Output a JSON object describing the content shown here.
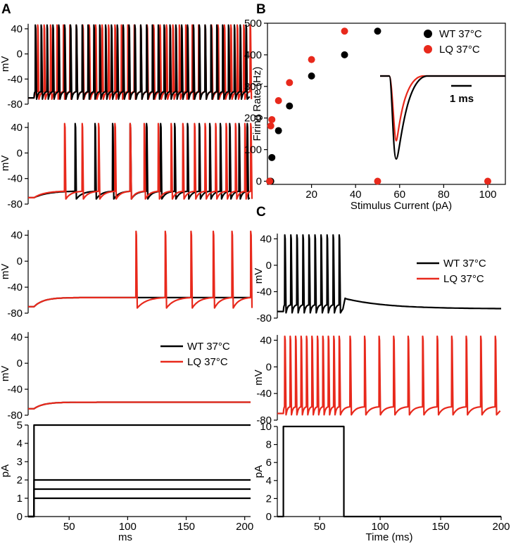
{
  "figure_labels": {
    "A": "A",
    "B": "B",
    "C": "C"
  },
  "colors": {
    "wt": "#000000",
    "lq": "#e8291c"
  },
  "legend": {
    "wt": "WT 37°C",
    "lq": "LQ 37°C"
  },
  "chart_data": [
    {
      "id": "A1",
      "type": "line",
      "title": "",
      "ylabel": "mV",
      "xlabel": "",
      "xlim": [
        15,
        205
      ],
      "ylim": [
        -80,
        50
      ],
      "yticks": [
        40,
        0,
        -40,
        -80
      ],
      "xticks": [],
      "series": [
        {
          "name": "WT 37°C",
          "key": "wt",
          "spike_onset_ms": 21,
          "spike_times_ms": [
            21,
            26,
            31,
            36,
            41,
            46,
            51,
            56,
            61,
            66,
            71,
            76,
            81,
            86,
            91,
            96,
            101,
            106,
            111,
            116,
            121,
            126,
            131,
            136,
            141,
            146,
            151,
            156,
            161,
            166,
            171,
            176,
            181,
            186,
            191,
            196,
            201
          ],
          "baseline_mV": -70,
          "isi_floor_mV": -72
        },
        {
          "name": "LQ 37°C",
          "key": "lq",
          "spike_onset_ms": 23,
          "spike_times_ms": [
            23,
            28.5,
            34,
            39.5,
            45,
            50.5,
            56,
            61.5,
            67,
            72.5,
            78,
            83.5,
            89,
            94.5,
            100,
            105.5,
            111,
            116.5,
            122,
            127.5,
            133,
            138.5,
            144,
            149.5,
            155,
            160.5,
            166,
            171.5,
            177,
            182.5,
            188,
            193.5,
            199,
            204.5
          ],
          "baseline_mV": -70,
          "isi_floor_mV": -72
        }
      ]
    },
    {
      "id": "A2",
      "type": "line",
      "title": "",
      "ylabel": "mV",
      "xlabel": "",
      "xlim": [
        15,
        205
      ],
      "ylim": [
        -80,
        50
      ],
      "yticks": [
        40,
        0,
        -40,
        -80
      ],
      "xticks": [],
      "series": [
        {
          "name": "WT 37°C",
          "key": "wt",
          "spike_onset_ms": 55,
          "spike_times_ms": [
            55,
            72,
            87,
            102,
            116,
            128,
            140,
            151,
            161,
            170,
            179,
            187,
            195,
            202
          ],
          "baseline_mV": -70,
          "isi_floor_mV": -72
        },
        {
          "name": "LQ 37°C",
          "key": "lq",
          "spike_onset_ms": 46,
          "spike_times_ms": [
            46,
            61,
            75,
            89,
            102,
            114,
            126,
            137,
            147,
            157,
            166,
            175,
            184,
            192,
            200,
            205
          ],
          "baseline_mV": -70,
          "isi_floor_mV": -72
        }
      ]
    },
    {
      "id": "A3",
      "type": "line",
      "title": "",
      "ylabel": "mV",
      "xlabel": "",
      "xlim": [
        15,
        205
      ],
      "ylim": [
        -80,
        50
      ],
      "yticks": [
        40,
        0,
        -40,
        -80
      ],
      "xticks": [],
      "series": [
        {
          "name": "WT 37°C",
          "key": "wt",
          "spike_times_ms": [],
          "baseline_mV": -70,
          "plateau_mV": -56
        },
        {
          "name": "LQ 37°C",
          "key": "lq",
          "spike_times_ms": [
            107,
            132,
            154,
            173,
            189,
            205
          ],
          "baseline_mV": -70,
          "plateau_mV": -56,
          "isi_floor_mV": -72
        }
      ]
    },
    {
      "id": "A4",
      "type": "line",
      "title": "",
      "ylabel": "mV",
      "xlabel": "",
      "xlim": [
        15,
        205
      ],
      "ylim": [
        -80,
        50
      ],
      "yticks": [
        40,
        0,
        -40,
        -80
      ],
      "xticks": [],
      "series": [
        {
          "name": "WT 37°C",
          "key": "wt",
          "spike_times_ms": [],
          "baseline_mV": -70,
          "plateau_mV": -60
        },
        {
          "name": "LQ 37°C",
          "key": "lq",
          "spike_times_ms": [],
          "baseline_mV": -70,
          "plateau_mV": -60
        }
      ]
    },
    {
      "id": "A5",
      "type": "line",
      "title": "",
      "ylabel": "pA",
      "xlabel": "ms",
      "xlim": [
        15,
        205
      ],
      "ylim": [
        0,
        5
      ],
      "yticks": [
        5,
        4,
        3,
        2,
        1,
        0
      ],
      "xticks": [
        50,
        100,
        150,
        200
      ],
      "stimulus_onset_ms": 20,
      "step_amplitudes_pA": [
        5,
        2,
        1.5,
        1
      ]
    },
    {
      "id": "B",
      "type": "scatter",
      "title": "",
      "xlabel": "Stimulus Current (pA)",
      "ylabel": "Firing Rate (Hz)",
      "xlim": [
        0,
        108
      ],
      "ylim": [
        -10,
        500
      ],
      "xticks": [
        20,
        40,
        60,
        80,
        100
      ],
      "yticks": [
        0,
        100,
        200,
        300,
        400,
        500
      ],
      "legend_position": "top-right",
      "series": [
        {
          "name": "WT 37°C",
          "key": "wt",
          "x": [
            1,
            1.5,
            2,
            5,
            10,
            20,
            35,
            50
          ],
          "y": [
            0,
            0,
            75,
            160,
            238,
            333,
            400,
            475
          ]
        },
        {
          "name": "LQ 37°C",
          "key": "lq",
          "x": [
            1,
            1.5,
            2,
            5,
            10,
            20,
            35,
            50,
            100
          ],
          "y": [
            0,
            175,
            195,
            255,
            312,
            385,
            475,
            0,
            0
          ]
        }
      ],
      "inset": {
        "scale_bar_label": "1 ms",
        "note": "action potential waveform"
      }
    },
    {
      "id": "C1",
      "type": "line",
      "title": "",
      "ylabel": "mV",
      "xlabel": "",
      "xlim": [
        15,
        200
      ],
      "ylim": [
        -80,
        50
      ],
      "yticks": [
        40,
        0,
        -40,
        -80
      ],
      "xticks": [],
      "legend_position": "top-right",
      "series": [
        {
          "name": "WT 37°C",
          "key": "wt",
          "spike_times_ms": [
            21,
            26,
            31,
            36,
            41,
            46,
            51,
            56,
            61,
            66
          ],
          "stimulus_end_ms": 70,
          "baseline_mV": -70,
          "isi_floor_mV": -72
        }
      ]
    },
    {
      "id": "C2",
      "type": "line",
      "title": "",
      "ylabel": "mV",
      "xlabel": "",
      "xlim": [
        15,
        200
      ],
      "ylim": [
        -80,
        50
      ],
      "yticks": [
        40,
        0,
        -40,
        -80
      ],
      "xticks": [],
      "series": [
        {
          "name": "LQ 37°C",
          "key": "lq",
          "spike_times_ms": [
            21,
            25.5,
            30,
            34.5,
            39,
            43.5,
            48,
            52.5,
            57,
            61.5,
            66,
            75,
            87,
            99,
            111,
            123,
            135,
            147,
            159,
            171,
            183,
            195
          ],
          "baseline_mV": -70,
          "isi_floor_mV": -72
        }
      ]
    },
    {
      "id": "C3",
      "type": "line",
      "title": "",
      "ylabel": "pA",
      "xlabel": "Time (ms)",
      "xlim": [
        15,
        200
      ],
      "ylim": [
        0,
        10
      ],
      "yticks": [
        10,
        8,
        6,
        4,
        2,
        0
      ],
      "xticks": [
        50,
        100,
        150,
        200
      ],
      "stimulus_onset_ms": 20,
      "stimulus_end_ms": 70,
      "step_amplitudes_pA": [
        10
      ]
    }
  ]
}
